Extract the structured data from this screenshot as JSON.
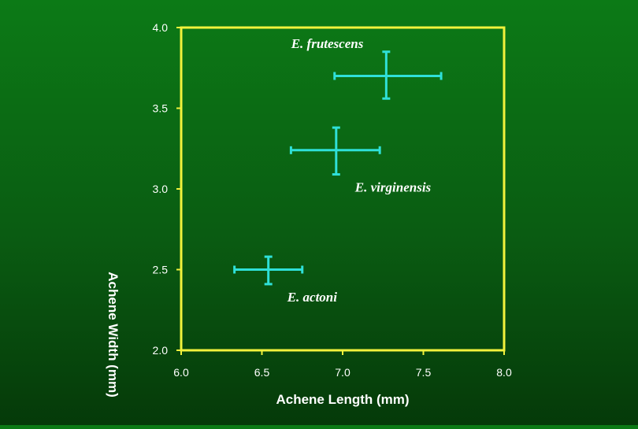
{
  "chart_data": {
    "type": "scatter",
    "title": "",
    "xlabel": "Achene Length (mm)",
    "ylabel": "Achene Width (mm)",
    "xlim": [
      6.0,
      8.0
    ],
    "ylim": [
      2.0,
      4.0
    ],
    "x_ticks": [
      "6.0",
      "6.5",
      "7.0",
      "7.5",
      "8.0"
    ],
    "y_ticks": [
      "4.0",
      "3.5",
      "3.0",
      "2.5",
      "2.0"
    ],
    "grid": false,
    "points": [
      {
        "label": "E. frutescens",
        "x": 7.27,
        "y": 3.7,
        "x_err": [
          6.95,
          7.61
        ],
        "y_err": [
          3.56,
          3.85
        ],
        "label_position": "above-left"
      },
      {
        "label": "E. virginensis",
        "x": 6.96,
        "y": 3.24,
        "x_err": [
          6.68,
          7.23
        ],
        "y_err": [
          3.09,
          3.38
        ],
        "label_position": "below-right"
      },
      {
        "label": "E. actoni",
        "x": 6.54,
        "y": 2.5,
        "x_err": [
          6.33,
          6.75
        ],
        "y_err": [
          2.41,
          2.58
        ],
        "label_position": "below-right"
      }
    ],
    "colors": {
      "frame": "#f2f23c",
      "error_bars": "#2fe0d8",
      "text": "#ffffff"
    }
  }
}
